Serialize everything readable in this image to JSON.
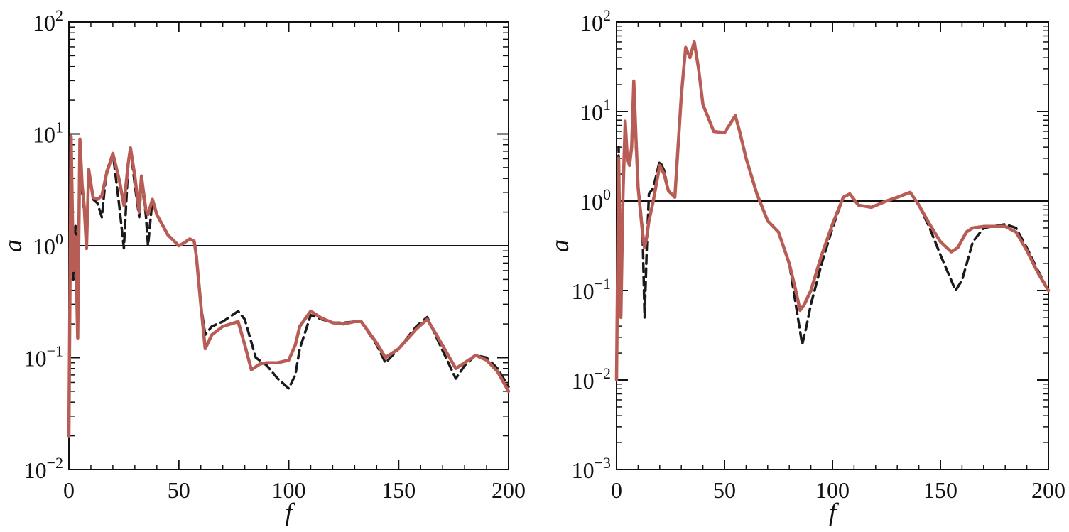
{
  "chart_data": [
    {
      "type": "line",
      "xlabel": "f",
      "ylabel": "a",
      "xlim": [
        0,
        200
      ],
      "ylim": [
        0.01,
        100
      ],
      "yscale": "log",
      "grid": false,
      "xticks": [
        "0",
        "50",
        "100",
        "150",
        "200"
      ],
      "yticks": [
        {
          "base": "10",
          "exp": "−2"
        },
        {
          "base": "10",
          "exp": "−1"
        },
        {
          "base": "10",
          "exp": "0"
        },
        {
          "base": "10",
          "exp": "1"
        },
        {
          "base": "10",
          "exp": "2"
        }
      ],
      "reference_line": 1,
      "series": [
        {
          "style": "dashed",
          "color": "#1a1a1a",
          "x": [
            0,
            1,
            2,
            3,
            4,
            5,
            6,
            7,
            8,
            9,
            11,
            13,
            15,
            17,
            20,
            23,
            25,
            27,
            28,
            30,
            32,
            33,
            35,
            36,
            38,
            40,
            45,
            50,
            52,
            55,
            57,
            58,
            60,
            62,
            65,
            70,
            77,
            80,
            85,
            90,
            95,
            100,
            103,
            105,
            110,
            115,
            120,
            125,
            130,
            133,
            140,
            144,
            150,
            158,
            163,
            168,
            176,
            180,
            185,
            190,
            195,
            200
          ],
          "y": [
            0.02,
            8,
            0.5,
            1.5,
            0.15,
            9,
            3,
            2,
            0.9,
            4.8,
            2.6,
            2.4,
            1.8,
            4.5,
            6.7,
            2.2,
            0.95,
            5.5,
            7.5,
            3.5,
            1.8,
            3.8,
            1.9,
            1.0,
            2.6,
            1.9,
            1.25,
            1.0,
            1.05,
            1.15,
            1.1,
            0.8,
            0.3,
            0.16,
            0.19,
            0.21,
            0.26,
            0.22,
            0.1,
            0.085,
            0.065,
            0.053,
            0.07,
            0.12,
            0.24,
            0.22,
            0.205,
            0.205,
            0.21,
            0.21,
            0.13,
            0.09,
            0.12,
            0.19,
            0.23,
            0.14,
            0.065,
            0.085,
            0.105,
            0.1,
            0.08,
            0.055
          ]
        },
        {
          "style": "solid",
          "color": "#b85c56",
          "x": [
            0,
            1,
            2,
            3,
            4,
            5,
            6,
            7,
            8,
            9,
            11,
            13,
            15,
            17,
            20,
            23,
            25,
            27,
            28,
            30,
            32,
            33,
            35,
            36,
            38,
            40,
            45,
            50,
            52,
            55,
            57,
            58,
            60,
            62,
            65,
            70,
            77,
            80,
            83,
            87,
            90,
            95,
            100,
            103,
            105,
            110,
            115,
            120,
            125,
            130,
            133,
            140,
            144,
            150,
            158,
            163,
            168,
            176,
            180,
            185,
            190,
            195,
            200
          ],
          "y": [
            0.02,
            9.5,
            0.6,
            1.2,
            0.15,
            9,
            3.5,
            2.2,
            0.95,
            4.8,
            2.7,
            2.6,
            2.8,
            4.3,
            6.7,
            3.8,
            2.3,
            5.5,
            7.5,
            4.2,
            2.0,
            4.2,
            2.1,
            1.9,
            2.6,
            1.9,
            1.25,
            1.0,
            1.05,
            1.15,
            1.1,
            0.8,
            0.3,
            0.12,
            0.16,
            0.19,
            0.21,
            0.13,
            0.078,
            0.088,
            0.09,
            0.09,
            0.095,
            0.13,
            0.19,
            0.26,
            0.225,
            0.205,
            0.2,
            0.21,
            0.21,
            0.135,
            0.1,
            0.12,
            0.18,
            0.22,
            0.15,
            0.08,
            0.09,
            0.105,
            0.095,
            0.075,
            0.05
          ]
        }
      ]
    },
    {
      "type": "line",
      "xlabel": "f",
      "ylabel": "a",
      "xlim": [
        0,
        200
      ],
      "ylim": [
        0.001,
        100
      ],
      "yscale": "log",
      "grid": false,
      "xticks": [
        "0",
        "50",
        "100",
        "150",
        "200"
      ],
      "yticks": [
        {
          "base": "10",
          "exp": "−3"
        },
        {
          "base": "10",
          "exp": "−2"
        },
        {
          "base": "10",
          "exp": "−1"
        },
        {
          "base": "10",
          "exp": "0"
        },
        {
          "base": "10",
          "exp": "1"
        },
        {
          "base": "10",
          "exp": "2"
        }
      ],
      "reference_line": 1,
      "series": [
        {
          "style": "dashed",
          "color": "#1a1a1a",
          "x": [
            0,
            1,
            2,
            3,
            4,
            5,
            6,
            7,
            8,
            9,
            10,
            12,
            13,
            14,
            15,
            17,
            20,
            22,
            24,
            27,
            30,
            32,
            34,
            36,
            38,
            40,
            45,
            50,
            53,
            55,
            57,
            60,
            65,
            70,
            75,
            80,
            83,
            85,
            86,
            88,
            90,
            95,
            100,
            105,
            108,
            112,
            118,
            125,
            130,
            136,
            140,
            145,
            150,
            155,
            157,
            160,
            165,
            170,
            180,
            185,
            190,
            195,
            200
          ],
          "y": [
            0.01,
            4,
            0.05,
            1,
            7.8,
            3,
            2.5,
            4,
            20,
            4,
            1.5,
            0.5,
            0.05,
            0.3,
            1.2,
            1.4,
            2.8,
            2.2,
            1.3,
            1.1,
            15,
            52,
            40,
            60,
            30,
            12,
            6,
            5.8,
            7.5,
            9,
            6,
            3,
            1.2,
            0.6,
            0.45,
            0.2,
            0.07,
            0.035,
            0.025,
            0.04,
            0.07,
            0.2,
            0.5,
            1.1,
            1.2,
            0.9,
            0.85,
            1.0,
            1.1,
            1.25,
            0.9,
            0.5,
            0.25,
            0.13,
            0.1,
            0.13,
            0.35,
            0.5,
            0.55,
            0.5,
            0.3,
            0.17,
            0.1
          ]
        },
        {
          "style": "solid",
          "color": "#b85c56",
          "x": [
            0,
            1,
            2,
            3,
            4,
            5,
            6,
            7,
            8,
            9,
            10,
            12,
            13,
            14,
            15,
            17,
            20,
            22,
            24,
            27,
            30,
            32,
            34,
            36,
            38,
            40,
            45,
            50,
            53,
            55,
            57,
            60,
            65,
            70,
            75,
            80,
            83,
            85,
            87,
            90,
            95,
            100,
            105,
            108,
            112,
            118,
            125,
            130,
            136,
            140,
            145,
            150,
            155,
            158,
            162,
            165,
            170,
            180,
            185,
            190,
            195,
            200
          ],
          "y": [
            0.01,
            3,
            0.05,
            1.2,
            7.8,
            3,
            2.5,
            4,
            22,
            5,
            1.4,
            0.45,
            0.3,
            0.4,
            0.6,
            1.0,
            2.5,
            2.0,
            1.3,
            1.1,
            15,
            52,
            40,
            60,
            30,
            12,
            6,
            5.8,
            7.5,
            9,
            6,
            3,
            1.2,
            0.6,
            0.45,
            0.2,
            0.1,
            0.06,
            0.07,
            0.1,
            0.25,
            0.55,
            1.1,
            1.2,
            0.9,
            0.85,
            1.0,
            1.1,
            1.25,
            0.9,
            0.55,
            0.35,
            0.27,
            0.3,
            0.45,
            0.5,
            0.52,
            0.52,
            0.45,
            0.28,
            0.16,
            0.1
          ]
        }
      ]
    }
  ]
}
